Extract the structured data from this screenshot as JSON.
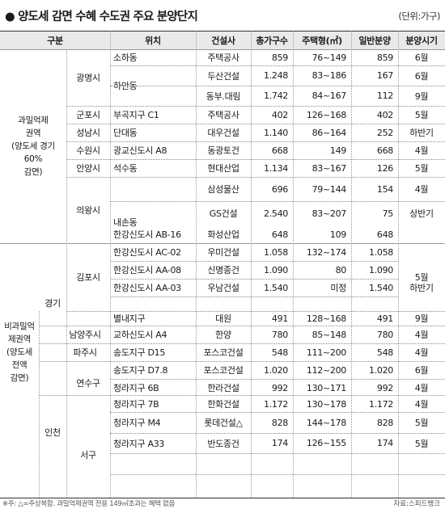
{
  "title": "● 양도세 감면 수혜 수도권 주요 분양단지",
  "unit": "(단위:가구)",
  "headers": {
    "category": "구분",
    "location": "위치",
    "builder": "건설사",
    "total_units": "총가구수",
    "unit_size": "주택형(㎡)",
    "general_sale": "일반분양",
    "sale_period": "분양시기"
  },
  "groups": {
    "overpopulation": "과밀억제\n권역\n(양도세 경기\n60%\n감면)",
    "non_overpopulation": "비과밀억\n제권역\n(양도세\n전액\n감면)",
    "gyeonggi": "경기",
    "incheon": "인천"
  },
  "cities": {
    "gwangmyeong": "광명시",
    "gunpo": "군포시",
    "seongnam": "성남시",
    "suwon": "수원시",
    "anyang": "안양시",
    "uiwang": "의왕시",
    "gimpo": "김포시",
    "namyangju": "남양주시",
    "paju": "파주시",
    "yeonsu": "연수구",
    "seo": "서구"
  },
  "districts": {
    "haan": "하안동",
    "naeson": "내손동"
  },
  "rows": [
    {
      "location": "소하동",
      "builder": "주택공사",
      "total": "859",
      "size": "76~149",
      "general": "859",
      "period": "6월"
    },
    {
      "location": "",
      "builder": "두산건설",
      "total": "1.248",
      "size": "83~186",
      "general": "167",
      "period": "6월"
    },
    {
      "location": "",
      "builder": "동부.대림",
      "total": "1.742",
      "size": "84~167",
      "general": "112",
      "period": "9월"
    },
    {
      "location": "부곡지구 C1",
      "builder": "주택공사",
      "total": "402",
      "size": "126~168",
      "general": "402",
      "period": "5월"
    },
    {
      "location": "단대동",
      "builder": "대우건설",
      "total": "1.140",
      "size": "86~164",
      "general": "252",
      "period": "하반기"
    },
    {
      "location": "광교신도시 A8",
      "builder": "동광토건",
      "total": "668",
      "size": "149",
      "general": "668",
      "period": "4월"
    },
    {
      "location": "석수동",
      "builder": "현대산업",
      "total": "1.134",
      "size": "83~167",
      "general": "126",
      "period": "5월"
    },
    {
      "location": "",
      "builder": "삼성물산",
      "total": "696",
      "size": "79~144",
      "general": "154",
      "period": "4월"
    },
    {
      "location": "",
      "builder": "GS건설",
      "total": "2.540",
      "size": "83~207",
      "general": "75",
      "period": "상반기"
    },
    {
      "location": "한강신도시 AB-16",
      "builder": "화성산업",
      "total": "648",
      "size": "109",
      "general": "648",
      "period": ""
    },
    {
      "location": "한강신도시 AC-02",
      "builder": "우미건설",
      "total": "1.058",
      "size": "132~174",
      "general": "1.058",
      "period": ""
    },
    {
      "location": "한강신도시 AA-08",
      "builder": "신명종건",
      "total": "1.090",
      "size": "80",
      "general": "1.090",
      "period": ""
    },
    {
      "location": "한강신도시 AA-03",
      "builder": "우남건설",
      "total": "1.540",
      "size": "미정",
      "general": "1.540",
      "period": "하반기"
    },
    {
      "location": "별내지구",
      "builder": "대원",
      "total": "491",
      "size": "128~168",
      "general": "491",
      "period": "9월"
    },
    {
      "location": "교하신도시 A4",
      "builder": "한양",
      "total": "780",
      "size": "85~148",
      "general": "780",
      "period": "4월"
    },
    {
      "location": "송도지구 D15",
      "builder": "포스코건설",
      "total": "548",
      "size": "111~200",
      "general": "548",
      "period": "4월"
    },
    {
      "location": "송도지구 D7.8",
      "builder": "포스코건설",
      "total": "1.020",
      "size": "112~200",
      "general": "1.020",
      "period": "6월"
    },
    {
      "location": "청라지구 6B",
      "builder": "한라건설",
      "total": "992",
      "size": "130~171",
      "general": "992",
      "period": "4월"
    },
    {
      "location": "청라지구 7B",
      "builder": "한화건설",
      "total": "1.172",
      "size": "130~178",
      "general": "1.172",
      "period": "4월"
    },
    {
      "location": "청라지구 M4",
      "builder": "롯데건설△",
      "total": "828",
      "size": "144~178",
      "general": "828",
      "period": "5월"
    },
    {
      "location": "청라지구 A33",
      "builder": "반도종건",
      "total": "174",
      "size": "126~155",
      "general": "174",
      "period": "5월"
    }
  ],
  "gimpo_period": "5월",
  "footer_note": "※주: △=주상복합. 과밀억제권역 전용 149㎡초과는 혜택 없음",
  "footer_source": "자료:스피드뱅크"
}
